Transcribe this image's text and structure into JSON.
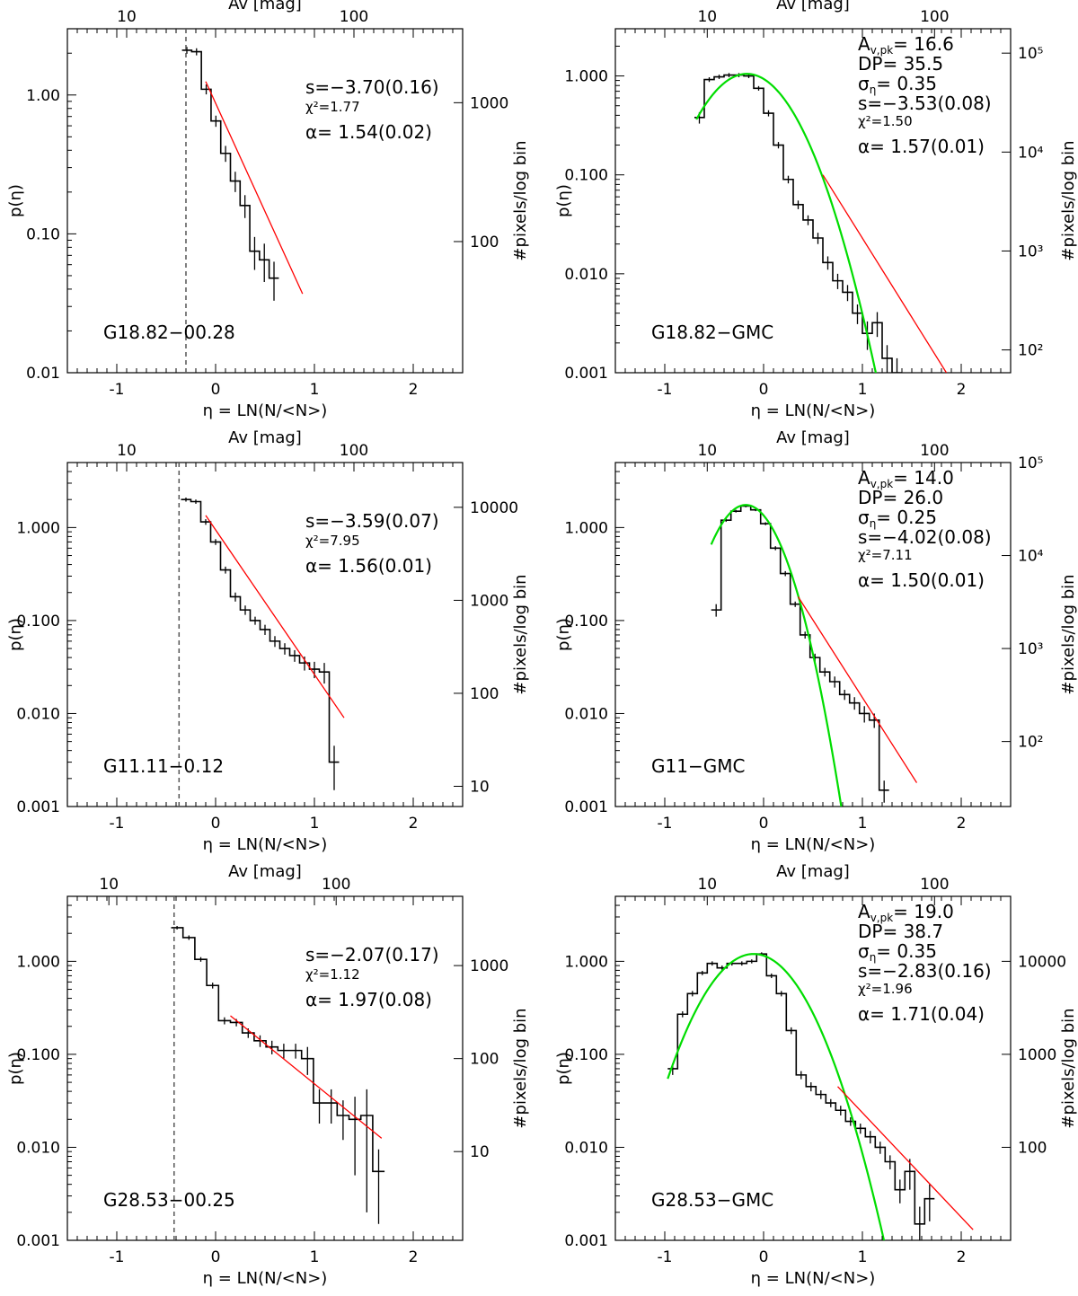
{
  "figure": {
    "x_title": "η = LN(N/<N>)",
    "top_title": "Av [mag]",
    "y_title": "p(η)",
    "right_title": "#pixels/log bin"
  },
  "chart_data": [
    {
      "id": "p1",
      "type": "histogram",
      "region": "G18.82−00.28",
      "xlim": [
        -1.5,
        2.5
      ],
      "ylim": [
        0.01,
        3.0
      ],
      "xticks": [
        -1,
        0,
        1,
        2
      ],
      "yticks": [
        {
          "v": 1.0,
          "label": "1.00"
        },
        {
          "v": 0.1,
          "label": "0.10"
        },
        {
          "v": 0.01,
          "label": "0.01"
        }
      ],
      "top_axis": {
        "title": "Av [mag]",
        "labels": [
          {
            "label": "10",
            "x": -0.9
          },
          {
            "label": "100",
            "x": 1.4
          }
        ]
      },
      "right_axis": {
        "title": "#pixels/log bin",
        "labels": [
          {
            "label": "1000",
            "y": 0.88
          },
          {
            "label": "100",
            "y": 0.088
          }
        ]
      },
      "threshold_x": -0.3,
      "hist": {
        "x0": -0.34,
        "w": 0.098,
        "values": [
          2.1,
          2.05,
          1.1,
          0.65,
          0.38,
          0.24,
          0.16,
          0.075,
          0.065,
          0.048
        ],
        "errors": [
          0.12,
          0.12,
          0.09,
          0.06,
          0.05,
          0.04,
          0.03,
          0.02,
          0.02,
          0.015
        ]
      },
      "fit_red": {
        "x1": -0.1,
        "y1": 1.25,
        "x2": 0.88,
        "y2": 0.037
      },
      "stats": [
        {
          "text": "s=−3.70(0.16)",
          "size": "large"
        },
        {
          "text": "χ²=1.77",
          "size": "small"
        },
        {
          "text": "α= 1.54(0.02)",
          "size": "large"
        }
      ]
    },
    {
      "id": "p2",
      "type": "histogram",
      "region": "G18.82−GMC",
      "xlim": [
        -1.5,
        2.5
      ],
      "ylim": [
        0.001,
        3.0
      ],
      "xticks": [
        -1,
        0,
        1,
        2
      ],
      "yticks": [
        {
          "v": 1.0,
          "label": "1.000"
        },
        {
          "v": 0.1,
          "label": "0.100"
        },
        {
          "v": 0.01,
          "label": "0.010"
        },
        {
          "v": 0.001,
          "label": "0.001"
        }
      ],
      "top_axis": {
        "title": "Av [mag]",
        "labels": [
          {
            "label": "10",
            "x": -0.57
          },
          {
            "label": "100",
            "x": 1.73
          }
        ]
      },
      "right_axis": {
        "title": "#pixels/log bin",
        "labels": [
          {
            "label": "10⁵",
            "y": 1.7
          },
          {
            "label": "10⁴",
            "y": 0.17
          },
          {
            "label": "10³",
            "y": 0.017
          },
          {
            "label": "10²",
            "y": 0.0017
          }
        ]
      },
      "hist": {
        "x0": -0.7,
        "w": 0.1,
        "values": [
          0.38,
          0.92,
          0.98,
          1.02,
          1.02,
          1.0,
          0.75,
          0.42,
          0.2,
          0.09,
          0.05,
          0.035,
          0.023,
          0.013,
          0.0085,
          0.0065,
          0.004,
          0.0025,
          0.0032,
          0.0014,
          0.001
        ],
        "errors": [
          0.05,
          0.05,
          0.05,
          0.05,
          0.05,
          0.05,
          0.04,
          0.03,
          0.015,
          0.008,
          0.005,
          0.004,
          0.003,
          0.002,
          0.0015,
          0.0012,
          0.0009,
          0.0008,
          0.0009,
          0.0005,
          0.0004
        ]
      },
      "fit_green": {
        "amp": 1.05,
        "mu": -0.17,
        "sigma": 0.35,
        "xmin": -0.68,
        "xmax": 1.4
      },
      "fit_red": {
        "x1": 0.6,
        "y1": 0.1,
        "x2": 1.85,
        "y2": 0.001
      },
      "stats": [
        {
          "text": "A_v,pk= 16.6",
          "size": "large"
        },
        {
          "text": "DP= 35.5",
          "size": "large"
        },
        {
          "text": "σ_η= 0.35",
          "size": "large"
        },
        {
          "text": "s=−3.53(0.08)",
          "size": "large"
        },
        {
          "text": "χ²=1.50",
          "size": "small"
        },
        {
          "text": "α= 1.57(0.01)",
          "size": "large"
        }
      ]
    },
    {
      "id": "p3",
      "type": "histogram",
      "region": "G11.11−0.12",
      "xlim": [
        -1.5,
        2.5
      ],
      "ylim": [
        0.001,
        5.0
      ],
      "xticks": [
        -1,
        0,
        1,
        2
      ],
      "yticks": [
        {
          "v": 1.0,
          "label": "1.000"
        },
        {
          "v": 0.1,
          "label": "0.100"
        },
        {
          "v": 0.01,
          "label": "0.010"
        },
        {
          "v": 0.001,
          "label": "0.001"
        }
      ],
      "top_axis": {
        "title": "Av [mag]",
        "labels": [
          {
            "label": "10",
            "x": -0.9
          },
          {
            "label": "100",
            "x": 1.4
          }
        ]
      },
      "right_axis": {
        "title": "#pixels/log bin",
        "labels": [
          {
            "label": "10000",
            "y": 1.65
          },
          {
            "label": "1000",
            "y": 0.165
          },
          {
            "label": "100",
            "y": 0.0165
          },
          {
            "label": "10",
            "y": 0.00165
          }
        ]
      },
      "threshold_x": -0.37,
      "hist": {
        "x0": -0.35,
        "w": 0.1,
        "values": [
          2.0,
          1.9,
          1.15,
          0.7,
          0.35,
          0.18,
          0.13,
          0.1,
          0.08,
          0.06,
          0.05,
          0.042,
          0.035,
          0.03,
          0.028,
          0.003
        ],
        "errors": [
          0.1,
          0.1,
          0.08,
          0.05,
          0.03,
          0.02,
          0.015,
          0.01,
          0.01,
          0.008,
          0.007,
          0.006,
          0.006,
          0.006,
          0.007,
          0.0015
        ]
      },
      "fit_red": {
        "x1": -0.1,
        "y1": 1.35,
        "x2": 1.3,
        "y2": 0.009
      },
      "stats": [
        {
          "text": "s=−3.59(0.07)",
          "size": "large"
        },
        {
          "text": "χ²=7.95",
          "size": "small"
        },
        {
          "text": "α= 1.56(0.01)",
          "size": "large"
        }
      ]
    },
    {
      "id": "p4",
      "type": "histogram",
      "region": "G11−GMC",
      "xlim": [
        -1.5,
        2.5
      ],
      "ylim": [
        0.001,
        5.0
      ],
      "xticks": [
        -1,
        0,
        1,
        2
      ],
      "yticks": [
        {
          "v": 1.0,
          "label": "1.000"
        },
        {
          "v": 0.1,
          "label": "0.100"
        },
        {
          "v": 0.01,
          "label": "0.010"
        },
        {
          "v": 0.001,
          "label": "0.001"
        }
      ],
      "top_axis": {
        "title": "Av [mag]",
        "labels": [
          {
            "label": "10",
            "x": -0.57
          },
          {
            "label": "100",
            "x": 1.73
          }
        ]
      },
      "right_axis": {
        "title": "#pixels/log bin",
        "labels": [
          {
            "label": "10⁵",
            "y": 5.0
          },
          {
            "label": "10⁴",
            "y": 0.5
          },
          {
            "label": "10³",
            "y": 0.05
          },
          {
            "label": "10²",
            "y": 0.005
          }
        ]
      },
      "hist": {
        "x0": -0.53,
        "w": 0.1,
        "values": [
          0.13,
          1.2,
          1.5,
          1.7,
          1.55,
          1.1,
          0.6,
          0.32,
          0.15,
          0.07,
          0.04,
          0.028,
          0.022,
          0.016,
          0.013,
          0.01,
          0.0085,
          0.0015
        ],
        "errors": [
          0.02,
          0.05,
          0.05,
          0.05,
          0.05,
          0.04,
          0.03,
          0.02,
          0.01,
          0.006,
          0.004,
          0.003,
          0.003,
          0.002,
          0.002,
          0.002,
          0.0015,
          0.0004
        ]
      },
      "fit_green": {
        "amp": 1.75,
        "mu": -0.18,
        "sigma": 0.25,
        "xmin": -0.53,
        "xmax": 0.85
      },
      "fit_red": {
        "x1": 0.35,
        "y1": 0.18,
        "x2": 1.55,
        "y2": 0.0018
      },
      "stats": [
        {
          "text": "A_v,pk= 14.0",
          "size": "large"
        },
        {
          "text": "DP= 26.0",
          "size": "large"
        },
        {
          "text": "σ_η= 0.25",
          "size": "large"
        },
        {
          "text": "s=−4.02(0.08)",
          "size": "large"
        },
        {
          "text": "χ²=7.11",
          "size": "small"
        },
        {
          "text": "α= 1.50(0.01)",
          "size": "large"
        }
      ]
    },
    {
      "id": "p5",
      "type": "histogram",
      "region": "G28.53−00.25",
      "xlim": [
        -1.5,
        2.5
      ],
      "ylim": [
        0.001,
        5.0
      ],
      "xticks": [
        -1,
        0,
        1,
        2
      ],
      "yticks": [
        {
          "v": 1.0,
          "label": "1.000"
        },
        {
          "v": 0.1,
          "label": "0.100"
        },
        {
          "v": 0.01,
          "label": "0.010"
        },
        {
          "v": 0.001,
          "label": "0.001"
        }
      ],
      "top_axis": {
        "title": "Av [mag]",
        "labels": [
          {
            "label": "10",
            "x": -1.08
          },
          {
            "label": "100",
            "x": 1.22
          }
        ]
      },
      "right_axis": {
        "title": "#pixels/log bin",
        "labels": [
          {
            "label": "1000",
            "y": 0.9
          },
          {
            "label": "100",
            "y": 0.09
          },
          {
            "label": "10",
            "y": 0.009
          }
        ]
      },
      "threshold_x": -0.42,
      "hist": {
        "x0": -0.45,
        "w": 0.12,
        "values": [
          2.3,
          1.8,
          1.05,
          0.55,
          0.23,
          0.22,
          0.17,
          0.14,
          0.12,
          0.11,
          0.11,
          0.09,
          0.03,
          0.03,
          0.022,
          0.02,
          0.022,
          0.0055
        ],
        "errors": [
          0.1,
          0.1,
          0.06,
          0.04,
          0.02,
          0.02,
          0.02,
          0.02,
          0.02,
          0.02,
          0.02,
          0.03,
          0.012,
          0.012,
          0.01,
          0.015,
          0.02,
          0.004
        ]
      },
      "fit_red": {
        "x1": 0.15,
        "y1": 0.26,
        "x2": 1.68,
        "y2": 0.0125
      },
      "stats": [
        {
          "text": "s=−2.07(0.17)",
          "size": "large"
        },
        {
          "text": "χ²=1.12",
          "size": "small"
        },
        {
          "text": "α= 1.97(0.08)",
          "size": "large"
        }
      ]
    },
    {
      "id": "p6",
      "type": "histogram",
      "region": "G28.53−GMC",
      "xlim": [
        -1.5,
        2.5
      ],
      "ylim": [
        0.001,
        5.0
      ],
      "xticks": [
        -1,
        0,
        1,
        2
      ],
      "yticks": [
        {
          "v": 1.0,
          "label": "1.000"
        },
        {
          "v": 0.1,
          "label": "0.100"
        },
        {
          "v": 0.01,
          "label": "0.010"
        },
        {
          "v": 0.001,
          "label": "0.001"
        }
      ],
      "top_axis": {
        "title": "Av [mag]",
        "labels": [
          {
            "label": "10",
            "x": -0.57
          },
          {
            "label": "100",
            "x": 1.73
          }
        ]
      },
      "right_axis": {
        "title": "#pixels/log bin",
        "labels": [
          {
            "label": "10000",
            "y": 1.0
          },
          {
            "label": "1000",
            "y": 0.1
          },
          {
            "label": "100",
            "y": 0.01
          }
        ]
      },
      "hist": {
        "x0": -0.97,
        "w": 0.1,
        "values": [
          0.07,
          0.27,
          0.45,
          0.75,
          0.95,
          0.85,
          0.95,
          0.95,
          1.0,
          1.2,
          0.7,
          0.45,
          0.18,
          0.06,
          0.045,
          0.037,
          0.03,
          0.025,
          0.019,
          0.016,
          0.013,
          0.01,
          0.007,
          0.0035,
          0.0055,
          0.0015,
          0.0028
        ],
        "errors": [
          0.01,
          0.02,
          0.03,
          0.04,
          0.05,
          0.05,
          0.05,
          0.05,
          0.05,
          0.05,
          0.04,
          0.03,
          0.015,
          0.006,
          0.005,
          0.004,
          0.003,
          0.003,
          0.002,
          0.002,
          0.002,
          0.0015,
          0.0012,
          0.001,
          0.002,
          0.0008,
          0.0012
        ]
      },
      "fit_green": {
        "amp": 1.2,
        "mu": -0.1,
        "sigma": 0.35,
        "xmin": -0.97,
        "xmax": 1.4
      },
      "fit_red": {
        "x1": 0.75,
        "y1": 0.045,
        "x2": 2.12,
        "y2": 0.0013
      },
      "stats": [
        {
          "text": "A_v,pk= 19.0",
          "size": "large"
        },
        {
          "text": "DP= 38.7",
          "size": "large"
        },
        {
          "text": "σ_η= 0.35",
          "size": "large"
        },
        {
          "text": "s=−2.83(0.16)",
          "size": "large"
        },
        {
          "text": "χ²=1.96",
          "size": "small"
        },
        {
          "text": "α= 1.71(0.04)",
          "size": "large"
        }
      ]
    }
  ]
}
